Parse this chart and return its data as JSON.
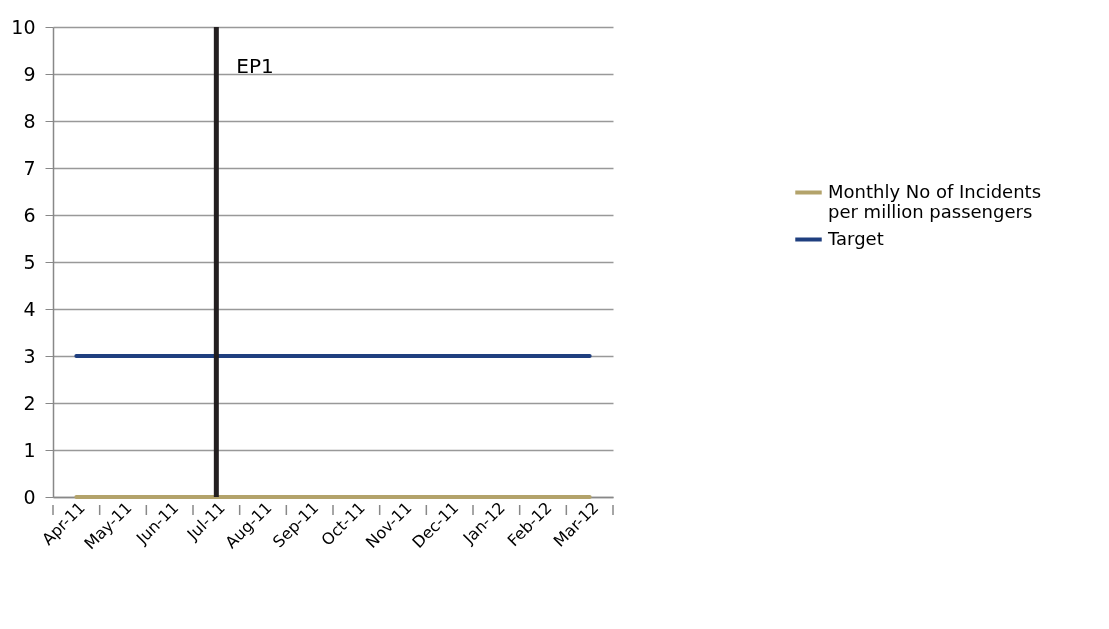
{
  "chart_data": {
    "type": "line",
    "categories": [
      "Apr-11",
      "May-11",
      "Jun-11",
      "Jul-11",
      "Aug-11",
      "Sep-11",
      "Oct-11",
      "Nov-11",
      "Dec-11",
      "Jan-12",
      "Feb-12",
      "Mar-12"
    ],
    "series": [
      {
        "name": "Monthly No of Incidents per million passengers",
        "color": "#b3a36b",
        "values": [
          0,
          0,
          0,
          0,
          0,
          0,
          0,
          0,
          0,
          0,
          0,
          0
        ]
      },
      {
        "name": "Target",
        "color": "#1f3f7f",
        "values": [
          3,
          3,
          3,
          3,
          3,
          3,
          3,
          3,
          3,
          3,
          3,
          3
        ]
      }
    ],
    "ylim": [
      0,
      10
    ],
    "yticks": [
      0,
      1,
      2,
      3,
      4,
      5,
      6,
      7,
      8,
      9,
      10
    ],
    "grid": "y",
    "legend": "right",
    "marker": "none",
    "ref_lines": [
      {
        "axis": "x",
        "value": "Jul-11",
        "label": "EP1",
        "color": "#231f20"
      }
    ]
  }
}
